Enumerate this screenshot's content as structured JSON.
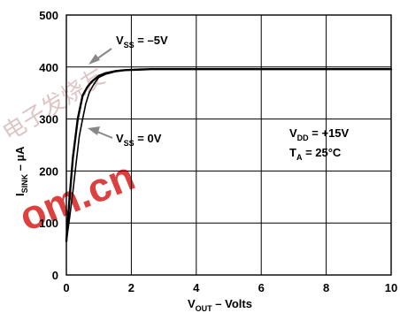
{
  "chart_data": {
    "type": "line",
    "xlabel": {
      "main": "V",
      "sub": "OUT",
      "rest": " – Volts"
    },
    "ylabel": {
      "main": "I",
      "sub": "SINK",
      "rest": " – µA"
    },
    "xlim": [
      0,
      10
    ],
    "ylim": [
      0,
      500
    ],
    "x_ticks": [
      0,
      2,
      4,
      6,
      8,
      10
    ],
    "y_ticks": [
      0,
      100,
      200,
      300,
      400,
      500
    ],
    "x_tick_labels": [
      "0",
      "2",
      "4",
      "6",
      "8",
      "10"
    ],
    "y_tick_labels": [
      "0",
      "100",
      "200",
      "300",
      "400",
      "500"
    ],
    "grid": true,
    "series": [
      {
        "name": "VSS = –5V",
        "label_parts": {
          "main": "V",
          "sub": "SS",
          "rest": " = –5V"
        },
        "x": [
          0,
          0.1,
          0.2,
          0.35,
          0.5,
          0.65,
          0.8,
          1.0,
          1.2,
          1.5,
          1.8,
          2.2,
          2.6,
          3.0,
          10
        ],
        "y": [
          65,
          150,
          225,
          300,
          345,
          362,
          373,
          383,
          388,
          392,
          394,
          395,
          396,
          396,
          396
        ]
      },
      {
        "name": "VSS = 0V",
        "label_parts": {
          "main": "V",
          "sub": "SS",
          "rest": " = 0V"
        },
        "x": [
          0,
          0.1,
          0.2,
          0.3,
          0.4,
          0.5,
          0.6,
          0.7,
          0.8,
          0.9,
          1.0,
          1.2,
          1.5,
          1.8,
          2.2,
          2.6,
          3.0,
          10
        ],
        "y": [
          65,
          110,
          160,
          215,
          268,
          300,
          330,
          350,
          362,
          372,
          380,
          386,
          391,
          394,
          395,
          396,
          396,
          396
        ]
      }
    ],
    "annotations": [
      {
        "line1": {
          "main": "V",
          "sub": "DD",
          "rest": " = +15V"
        },
        "line2": {
          "main": "T",
          "sub": "A",
          "rest": " = 25°C"
        }
      }
    ]
  },
  "watermark": {
    "text": "om.cn",
    "cjk": "电子发烧友"
  }
}
